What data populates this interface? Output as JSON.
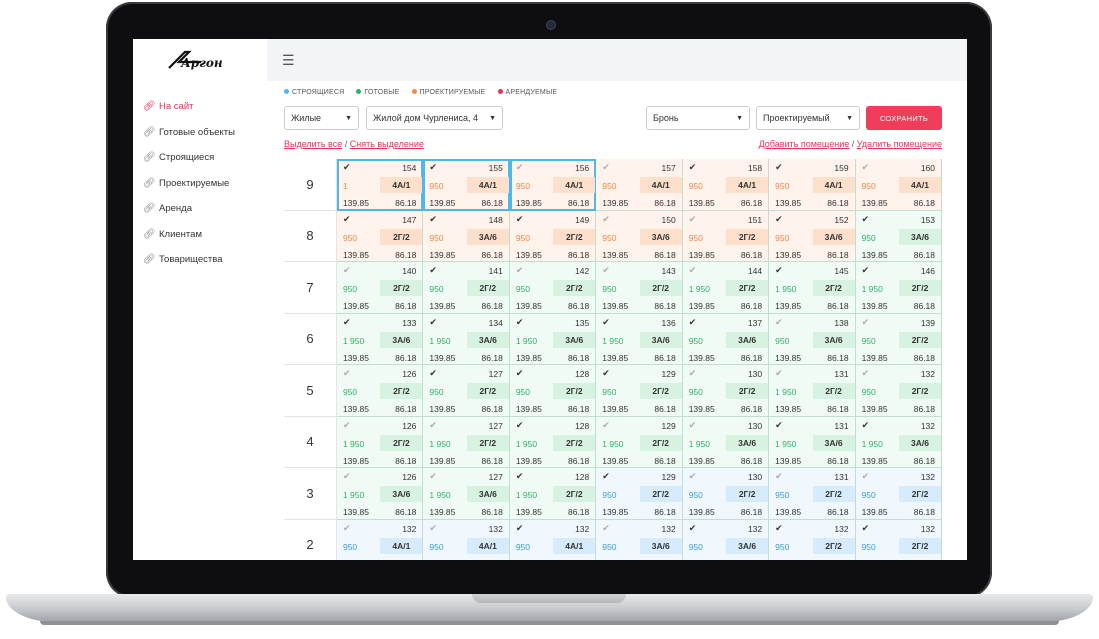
{
  "colors": {
    "accent": "#e8325a",
    "building": "#4db8ec",
    "ready": "#2faf6a",
    "design": "#f0894a",
    "rent": "#e8325a"
  },
  "sidebar": {
    "logo": "Аргон",
    "items": [
      {
        "label": "На сайт",
        "icon": "link-icon"
      },
      {
        "label": "Готовые объекты",
        "icon": "link-icon"
      },
      {
        "label": "Строящиеся",
        "icon": "link-icon"
      },
      {
        "label": "Проектируемые",
        "icon": "link-icon"
      },
      {
        "label": "Аренда",
        "icon": "link-icon"
      },
      {
        "label": "Клиентам",
        "icon": "link-icon"
      },
      {
        "label": "Товарищества",
        "icon": "link-icon"
      }
    ]
  },
  "legend": [
    "СТРОЯЩИЕСЯ",
    "ГОТОВЫЕ",
    "ПРОЕКТИРУЕМЫЕ",
    "АРЕНДУЕМЫЕ"
  ],
  "filters": {
    "type": "Жилые",
    "building": "Жилой дом Чурлениса, 4",
    "status": "Бронь",
    "stage": "Проектируемый",
    "save": "СОХРАНИТЬ"
  },
  "links": {
    "select_all": "Выделить все",
    "sep1": " / ",
    "deselect": "Снять выделение",
    "add": "Добавить помещение",
    "sep2": " / ",
    "remove": "Удалить помещение"
  },
  "grid": [
    {
      "floor": "9",
      "cells": [
        {
          "n": "154",
          "p": "1",
          "t": "4А/1",
          "a1": "139.85",
          "a2": "86.18",
          "c": "orange",
          "k": "dark",
          "sel": true
        },
        {
          "n": "155",
          "p": "950",
          "t": "4А/1",
          "a1": "139.85",
          "a2": "86.18",
          "c": "orange",
          "k": "dark",
          "sel": true
        },
        {
          "n": "156",
          "p": "950",
          "t": "4А/1",
          "a1": "139.85",
          "a2": "86.18",
          "c": "orange",
          "k": "light",
          "sel": true
        },
        {
          "n": "157",
          "p": "950",
          "t": "4А/1",
          "a1": "139.85",
          "a2": "86.18",
          "c": "orange",
          "k": "light"
        },
        {
          "n": "158",
          "p": "950",
          "t": "4А/1",
          "a1": "139.85",
          "a2": "86.18",
          "c": "orange",
          "k": "dark"
        },
        {
          "n": "159",
          "p": "950",
          "t": "4А/1",
          "a1": "139.85",
          "a2": "86.18",
          "c": "orange",
          "k": "dark"
        },
        {
          "n": "160",
          "p": "950",
          "t": "4А/1",
          "a1": "139.85",
          "a2": "86.18",
          "c": "orange",
          "k": "light"
        }
      ]
    },
    {
      "floor": "8",
      "cells": [
        {
          "n": "147",
          "p": "950",
          "t": "2Г/2",
          "a1": "139.85",
          "a2": "86.18",
          "c": "orange",
          "k": "dark"
        },
        {
          "n": "148",
          "p": "950",
          "t": "3А/6",
          "a1": "139.85",
          "a2": "86.18",
          "c": "orange",
          "k": "dark"
        },
        {
          "n": "149",
          "p": "950",
          "t": "2Г/2",
          "a1": "139.85",
          "a2": "86.18",
          "c": "orange",
          "k": "dark"
        },
        {
          "n": "150",
          "p": "950",
          "t": "3А/6",
          "a1": "139.85",
          "a2": "86.18",
          "c": "orange",
          "k": "light"
        },
        {
          "n": "151",
          "p": "950",
          "t": "2Г/2",
          "a1": "139.85",
          "a2": "86.18",
          "c": "orange",
          "k": "light"
        },
        {
          "n": "152",
          "p": "950",
          "t": "3А/6",
          "a1": "139.85",
          "a2": "86.18",
          "c": "orange",
          "k": "dark"
        },
        {
          "n": "153",
          "p": "950",
          "t": "3А/6",
          "a1": "139.85",
          "a2": "86.18",
          "c": "green",
          "k": "dark"
        }
      ]
    },
    {
      "floor": "7",
      "cells": [
        {
          "n": "140",
          "p": "950",
          "t": "2Г/2",
          "a1": "139.85",
          "a2": "86.18",
          "c": "green",
          "k": "light"
        },
        {
          "n": "141",
          "p": "950",
          "t": "2Г/2",
          "a1": "139.85",
          "a2": "86.18",
          "c": "green",
          "k": "dark"
        },
        {
          "n": "142",
          "p": "950",
          "t": "2Г/2",
          "a1": "139.85",
          "a2": "86.18",
          "c": "green",
          "k": "light"
        },
        {
          "n": "143",
          "p": "950",
          "t": "2Г/2",
          "a1": "139.85",
          "a2": "86.18",
          "c": "green",
          "k": "light"
        },
        {
          "n": "144",
          "p": "1 950",
          "t": "2Г/2",
          "a1": "139.85",
          "a2": "86.18",
          "c": "green",
          "k": "light"
        },
        {
          "n": "145",
          "p": "1 950",
          "t": "2Г/2",
          "a1": "139.85",
          "a2": "86.18",
          "c": "green",
          "k": "dark"
        },
        {
          "n": "146",
          "p": "1 950",
          "t": "2Г/2",
          "a1": "139.85",
          "a2": "86.18",
          "c": "green",
          "k": "dark"
        }
      ]
    },
    {
      "floor": "6",
      "cells": [
        {
          "n": "133",
          "p": "1 950",
          "t": "3А/6",
          "a1": "139.85",
          "a2": "86.18",
          "c": "green",
          "k": "dark"
        },
        {
          "n": "134",
          "p": "1 950",
          "t": "3А/6",
          "a1": "139.85",
          "a2": "86.18",
          "c": "green",
          "k": "dark"
        },
        {
          "n": "135",
          "p": "1 950",
          "t": "3А/6",
          "a1": "139.85",
          "a2": "86.18",
          "c": "green",
          "k": "dark"
        },
        {
          "n": "136",
          "p": "1 950",
          "t": "3А/6",
          "a1": "139.85",
          "a2": "86.18",
          "c": "green",
          "k": "dark"
        },
        {
          "n": "137",
          "p": "950",
          "t": "3А/6",
          "a1": "139.85",
          "a2": "86.18",
          "c": "green",
          "k": "dark"
        },
        {
          "n": "138",
          "p": "950",
          "t": "3А/6",
          "a1": "139.85",
          "a2": "86.18",
          "c": "green",
          "k": "light"
        },
        {
          "n": "139",
          "p": "950",
          "t": "2Г/2",
          "a1": "139.85",
          "a2": "86.18",
          "c": "green",
          "k": "light"
        }
      ]
    },
    {
      "floor": "5",
      "cells": [
        {
          "n": "126",
          "p": "950",
          "t": "2Г/2",
          "a1": "139.85",
          "a2": "86.18",
          "c": "green",
          "k": "light"
        },
        {
          "n": "127",
          "p": "950",
          "t": "2Г/2",
          "a1": "139.85",
          "a2": "86.18",
          "c": "green",
          "k": "dark"
        },
        {
          "n": "128",
          "p": "950",
          "t": "2Г/2",
          "a1": "139.85",
          "a2": "86.18",
          "c": "green",
          "k": "dark"
        },
        {
          "n": "129",
          "p": "950",
          "t": "2Г/2",
          "a1": "139.85",
          "a2": "86.18",
          "c": "green",
          "k": "dark"
        },
        {
          "n": "130",
          "p": "950",
          "t": "2Г/2",
          "a1": "139.85",
          "a2": "86.18",
          "c": "green",
          "k": "light"
        },
        {
          "n": "131",
          "p": "1 950",
          "t": "2Г/2",
          "a1": "139.85",
          "a2": "86.18",
          "c": "green",
          "k": "light"
        },
        {
          "n": "132",
          "p": "950",
          "t": "2Г/2",
          "a1": "139.85",
          "a2": "86.18",
          "c": "green",
          "k": "light"
        }
      ]
    },
    {
      "floor": "4",
      "cells": [
        {
          "n": "126",
          "p": "1 950",
          "t": "2Г/2",
          "a1": "139.85",
          "a2": "86.18",
          "c": "green",
          "k": "light"
        },
        {
          "n": "127",
          "p": "1 950",
          "t": "2Г/2",
          "a1": "139.85",
          "a2": "86.18",
          "c": "green",
          "k": "light"
        },
        {
          "n": "128",
          "p": "1 950",
          "t": "2Г/2",
          "a1": "139.85",
          "a2": "86.18",
          "c": "green",
          "k": "dark"
        },
        {
          "n": "129",
          "p": "1 950",
          "t": "2Г/2",
          "a1": "139.85",
          "a2": "86.18",
          "c": "green",
          "k": "light"
        },
        {
          "n": "130",
          "p": "1 950",
          "t": "3А/6",
          "a1": "139.85",
          "a2": "86.18",
          "c": "green",
          "k": "light"
        },
        {
          "n": "131",
          "p": "1 950",
          "t": "3А/6",
          "a1": "139.85",
          "a2": "86.18",
          "c": "green",
          "k": "dark"
        },
        {
          "n": "132",
          "p": "1 950",
          "t": "3А/6",
          "a1": "139.85",
          "a2": "86.18",
          "c": "green",
          "k": "dark"
        }
      ]
    },
    {
      "floor": "3",
      "cells": [
        {
          "n": "126",
          "p": "1 950",
          "t": "3А/6",
          "a1": "139.85",
          "a2": "86.18",
          "c": "green",
          "k": "light"
        },
        {
          "n": "127",
          "p": "1 950",
          "t": "3А/6",
          "a1": "139.85",
          "a2": "86.18",
          "c": "green",
          "k": "light"
        },
        {
          "n": "128",
          "p": "1 950",
          "t": "2Г/2",
          "a1": "139.85",
          "a2": "86.18",
          "c": "green",
          "k": "dark"
        },
        {
          "n": "129",
          "p": "950",
          "t": "2Г/2",
          "a1": "139.85",
          "a2": "86.18",
          "c": "blue",
          "k": "dark"
        },
        {
          "n": "130",
          "p": "950",
          "t": "2Г/2",
          "a1": "139.85",
          "a2": "86.18",
          "c": "blue",
          "k": "light"
        },
        {
          "n": "131",
          "p": "950",
          "t": "2Г/2",
          "a1": "139.85",
          "a2": "86.18",
          "c": "blue",
          "k": "light"
        },
        {
          "n": "132",
          "p": "950",
          "t": "2Г/2",
          "a1": "139.85",
          "a2": "86.18",
          "c": "blue",
          "k": "light"
        }
      ]
    },
    {
      "floor": "2",
      "cells": [
        {
          "n": "132",
          "p": "950",
          "t": "4А/1",
          "a1": "",
          "a2": "",
          "c": "blue",
          "k": "light"
        },
        {
          "n": "132",
          "p": "950",
          "t": "4А/1",
          "a1": "",
          "a2": "",
          "c": "blue",
          "k": "light"
        },
        {
          "n": "132",
          "p": "950",
          "t": "4А/1",
          "a1": "",
          "a2": "",
          "c": "blue",
          "k": "dark"
        },
        {
          "n": "132",
          "p": "950",
          "t": "3А/6",
          "a1": "",
          "a2": "",
          "c": "blue",
          "k": "light"
        },
        {
          "n": "132",
          "p": "950",
          "t": "3А/6",
          "a1": "",
          "a2": "",
          "c": "blue",
          "k": "dark"
        },
        {
          "n": "132",
          "p": "950",
          "t": "2Г/2",
          "a1": "",
          "a2": "",
          "c": "blue",
          "k": "dark"
        },
        {
          "n": "132",
          "p": "950",
          "t": "2Г/2",
          "a1": "",
          "a2": "",
          "c": "blue",
          "k": "dark"
        }
      ]
    }
  ]
}
